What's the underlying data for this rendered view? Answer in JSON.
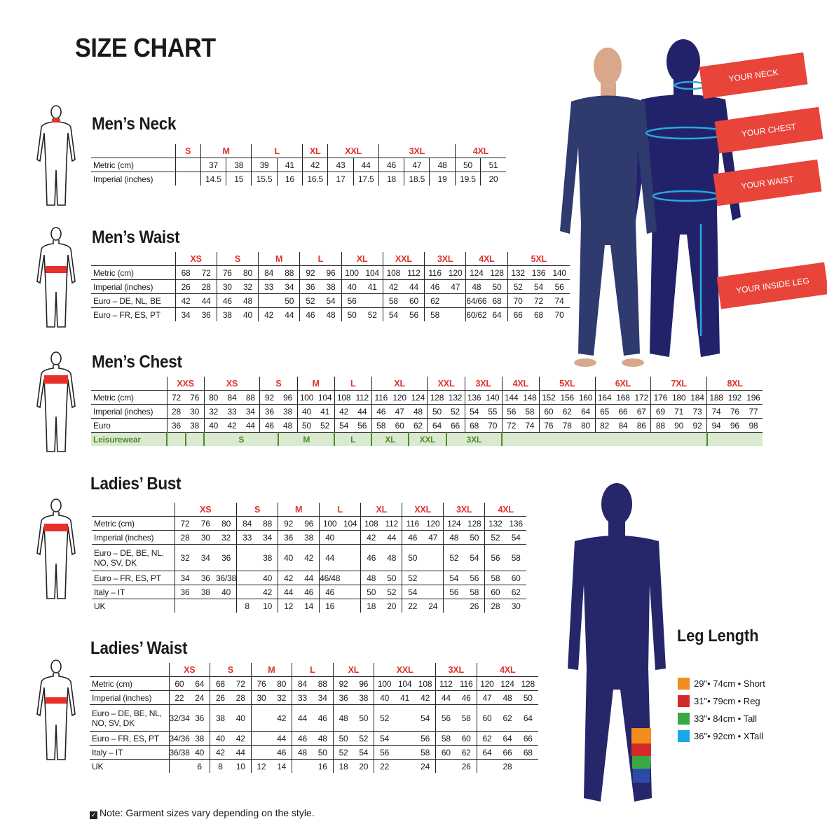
{
  "title": "SIZE CHART",
  "colors": {
    "accent_red": "#e0312b",
    "navy": "#26266b",
    "leisure_green": "#4f8a2b",
    "leisure_bg": "#d9ead0",
    "measure_blue": "#2aa8e0"
  },
  "tables": {
    "mens_neck": {
      "heading": "Men’s Neck",
      "groups": [
        {
          "size": "S",
          "cols": 1
        },
        {
          "size": "M",
          "cols": 2
        },
        {
          "size": "L",
          "cols": 2
        },
        {
          "size": "XL",
          "cols": 1
        },
        {
          "size": "XXL",
          "cols": 2
        },
        {
          "size": "3XL",
          "cols": 3
        },
        {
          "size": "4XL",
          "cols": 2
        }
      ],
      "rows": [
        {
          "label": "Metric (cm)",
          "cells": [
            "",
            "37",
            "38",
            "39",
            "41",
            "42",
            "43",
            "44",
            "46",
            "47",
            "48",
            "50",
            "51"
          ]
        },
        {
          "label": "Imperial (inches)",
          "cells": [
            "",
            "14.5",
            "15",
            "15.5",
            "16",
            "16.5",
            "17",
            "17.5",
            "18",
            "18.5",
            "19",
            "19.5",
            "20"
          ]
        }
      ]
    },
    "mens_waist": {
      "heading": "Men’s Waist",
      "groups": [
        {
          "size": "XS",
          "cols": 2
        },
        {
          "size": "S",
          "cols": 2
        },
        {
          "size": "M",
          "cols": 2
        },
        {
          "size": "L",
          "cols": 2
        },
        {
          "size": "XL",
          "cols": 2
        },
        {
          "size": "XXL",
          "cols": 2
        },
        {
          "size": "3XL",
          "cols": 2
        },
        {
          "size": "4XL",
          "cols": 2
        },
        {
          "size": "5XL",
          "cols": 3
        }
      ],
      "rows": [
        {
          "label": "Metric (cm)",
          "cells": [
            "68",
            "72",
            "76",
            "80",
            "84",
            "88",
            "92",
            "96",
            "100",
            "104",
            "108",
            "112",
            "116",
            "120",
            "124",
            "128",
            "132",
            "136",
            "140"
          ]
        },
        {
          "label": "Imperial (inches)",
          "cells": [
            "26",
            "28",
            "30",
            "32",
            "33",
            "34",
            "36",
            "38",
            "40",
            "41",
            "42",
            "44",
            "46",
            "47",
            "48",
            "50",
            "52",
            "54",
            "56"
          ]
        },
        {
          "label": "Euro – DE, NL, BE",
          "cells": [
            "42",
            "44",
            "46",
            "48",
            "",
            "50",
            "52",
            "54",
            "56",
            "",
            "58",
            "60",
            "62",
            "",
            "64/66",
            "68",
            "70",
            "72",
            "74"
          ]
        },
        {
          "label": "Euro – FR, ES, PT",
          "cells": [
            "34",
            "36",
            "38",
            "40",
            "42",
            "44",
            "46",
            "48",
            "50",
            "52",
            "54",
            "56",
            "58",
            "",
            "60/62",
            "64",
            "66",
            "68",
            "70"
          ]
        }
      ]
    },
    "mens_chest": {
      "heading": "Men’s Chest",
      "groups": [
        {
          "size": "XXS",
          "cols": 2
        },
        {
          "size": "XS",
          "cols": 3
        },
        {
          "size": "S",
          "cols": 2
        },
        {
          "size": "M",
          "cols": 2
        },
        {
          "size": "L",
          "cols": 2
        },
        {
          "size": "XL",
          "cols": 3
        },
        {
          "size": "XXL",
          "cols": 2
        },
        {
          "size": "3XL",
          "cols": 2
        },
        {
          "size": "4XL",
          "cols": 2
        },
        {
          "size": "5XL",
          "cols": 3
        },
        {
          "size": "6XL",
          "cols": 3
        },
        {
          "size": "7XL",
          "cols": 3
        },
        {
          "size": "8XL",
          "cols": 3
        }
      ],
      "rows": [
        {
          "label": "Metric (cm)",
          "cells": [
            "72",
            "76",
            "80",
            "84",
            "88",
            "92",
            "96",
            "100",
            "104",
            "108",
            "112",
            "116",
            "120",
            "124",
            "128",
            "132",
            "136",
            "140",
            "144",
            "148",
            "152",
            "156",
            "160",
            "164",
            "168",
            "172",
            "176",
            "180",
            "184",
            "188",
            "192",
            "196"
          ]
        },
        {
          "label": "Imperial (inches)",
          "cells": [
            "28",
            "30",
            "32",
            "33",
            "34",
            "36",
            "38",
            "40",
            "41",
            "42",
            "44",
            "46",
            "47",
            "48",
            "50",
            "52",
            "54",
            "55",
            "56",
            "58",
            "60",
            "62",
            "64",
            "65",
            "66",
            "67",
            "69",
            "71",
            "73",
            "74",
            "76",
            "77"
          ]
        },
        {
          "label": "Euro",
          "cells": [
            "36",
            "38",
            "40",
            "42",
            "44",
            "46",
            "48",
            "50",
            "52",
            "54",
            "56",
            "58",
            "60",
            "62",
            "64",
            "66",
            "68",
            "70",
            "72",
            "74",
            "76",
            "78",
            "80",
            "82",
            "84",
            "86",
            "88",
            "90",
            "92",
            "94",
            "96",
            "98"
          ]
        }
      ],
      "leisurewear": {
        "label": "Leisurewear",
        "spans": [
          {
            "size": "",
            "cols": 1
          },
          {
            "size": "",
            "cols": 1
          },
          {
            "size": "S",
            "cols": 4
          },
          {
            "size": "M",
            "cols": 3
          },
          {
            "size": "L",
            "cols": 2
          },
          {
            "size": "XL",
            "cols": 2
          },
          {
            "size": "XXL",
            "cols": 2
          },
          {
            "size": "3XL",
            "cols": 3
          },
          {
            "size": "",
            "cols": 11
          },
          {
            "size": "",
            "cols": 3
          }
        ]
      }
    },
    "ladies_bust": {
      "heading": "Ladies’ Bust",
      "groups": [
        {
          "size": "XS",
          "cols": 3
        },
        {
          "size": "S",
          "cols": 2
        },
        {
          "size": "M",
          "cols": 2
        },
        {
          "size": "L",
          "cols": 2
        },
        {
          "size": "XL",
          "cols": 2
        },
        {
          "size": "XXL",
          "cols": 2
        },
        {
          "size": "3XL",
          "cols": 2
        },
        {
          "size": "4XL",
          "cols": 2
        }
      ],
      "rows": [
        {
          "label": "Metric (cm)",
          "cells": [
            "72",
            "76",
            "80",
            "84",
            "88",
            "92",
            "96",
            "100",
            "104",
            "108",
            "112",
            "116",
            "120",
            "124",
            "128",
            "132",
            "136"
          ]
        },
        {
          "label": "Imperial (inches)",
          "cells": [
            "28",
            "30",
            "32",
            "33",
            "34",
            "36",
            "38",
            "40",
            "",
            "42",
            "44",
            "46",
            "47",
            "48",
            "50",
            "52",
            "54"
          ]
        },
        {
          "label": "Euro –  DE, BE, NL, NO, SV, DK",
          "cells": [
            "32",
            "34",
            "36",
            "",
            "38",
            "40",
            "42",
            "44",
            "",
            "46",
            "48",
            "50",
            "",
            "52",
            "54",
            "56",
            "58"
          ]
        },
        {
          "label": "Euro – FR, ES, PT",
          "cells": [
            "34",
            "36",
            "36/38",
            "",
            "40",
            "42",
            "44",
            "46/48",
            "",
            "48",
            "50",
            "52",
            "",
            "54",
            "56",
            "58",
            "60"
          ]
        },
        {
          "label": "Italy – IT",
          "cells": [
            "36",
            "38",
            "40",
            "",
            "42",
            "44",
            "46",
            "46",
            "",
            "50",
            "52",
            "54",
            "",
            "56",
            "58",
            "60",
            "62"
          ]
        },
        {
          "label": "UK",
          "cells": [
            "",
            "",
            "",
            "8",
            "10",
            "12",
            "14",
            "16",
            "",
            "18",
            "20",
            "22",
            "24",
            "",
            "26",
            "28",
            "30"
          ]
        }
      ]
    },
    "ladies_waist": {
      "heading": "Ladies’ Waist",
      "groups": [
        {
          "size": "XS",
          "cols": 2
        },
        {
          "size": "S",
          "cols": 2
        },
        {
          "size": "M",
          "cols": 2
        },
        {
          "size": "L",
          "cols": 2
        },
        {
          "size": "XL",
          "cols": 2
        },
        {
          "size": "XXL",
          "cols": 3
        },
        {
          "size": "3XL",
          "cols": 2
        },
        {
          "size": "4XL",
          "cols": 3
        }
      ],
      "rows": [
        {
          "label": "Metric (cm)",
          "cells": [
            "60",
            "64",
            "68",
            "72",
            "76",
            "80",
            "84",
            "88",
            "92",
            "96",
            "100",
            "104",
            "108",
            "112",
            "116",
            "120",
            "124",
            "128"
          ]
        },
        {
          "label": "Imperial (inches)",
          "cells": [
            "22",
            "24",
            "26",
            "28",
            "30",
            "32",
            "33",
            "34",
            "36",
            "38",
            "40",
            "41",
            "42",
            "44",
            "46",
            "47",
            "48",
            "50"
          ]
        },
        {
          "label": "Euro – DE, BE, NL, NO, SV, DK",
          "cells": [
            "32/34",
            "36",
            "38",
            "40",
            "",
            "42",
            "44",
            "46",
            "48",
            "50",
            "52",
            "",
            "54",
            "56",
            "58",
            "60",
            "62",
            "64"
          ]
        },
        {
          "label": "Euro – FR, ES, PT",
          "cells": [
            "34/36",
            "38",
            "40",
            "42",
            "",
            "44",
            "46",
            "48",
            "50",
            "52",
            "54",
            "",
            "56",
            "58",
            "60",
            "62",
            "64",
            "66"
          ]
        },
        {
          "label": "Italy – IT",
          "cells": [
            "36/38",
            "40",
            "42",
            "44",
            "",
            "46",
            "48",
            "50",
            "52",
            "54",
            "56",
            "",
            "58",
            "60",
            "62",
            "64",
            "66",
            "68"
          ]
        },
        {
          "label": "UK",
          "cells": [
            "",
            "6",
            "8",
            "10",
            "12",
            "14",
            "",
            "16",
            "18",
            "20",
            "22",
            "",
            "24",
            "",
            "26",
            "",
            "28",
            ""
          ]
        }
      ]
    }
  },
  "measure_labels": {
    "neck": "YOUR NECK",
    "chest": "YOUR CHEST",
    "waist": "YOUR WAIST",
    "inside_leg": "YOUR INSIDE LEG"
  },
  "leg_length": {
    "heading": "Leg Length",
    "items": [
      {
        "label": "29\"• 74cm • Short",
        "color": "#f28c1e"
      },
      {
        "label": "31\"• 79cm • Reg",
        "color": "#d42a2a"
      },
      {
        "label": "33\"• 84cm • Tall",
        "color": "#3aa843"
      },
      {
        "label": "36\"• 92cm • XTall",
        "color": "#1aa6e8"
      }
    ]
  },
  "note": {
    "icon": "checkbox-icon",
    "text": "Note: Garment sizes vary depending on the style."
  }
}
